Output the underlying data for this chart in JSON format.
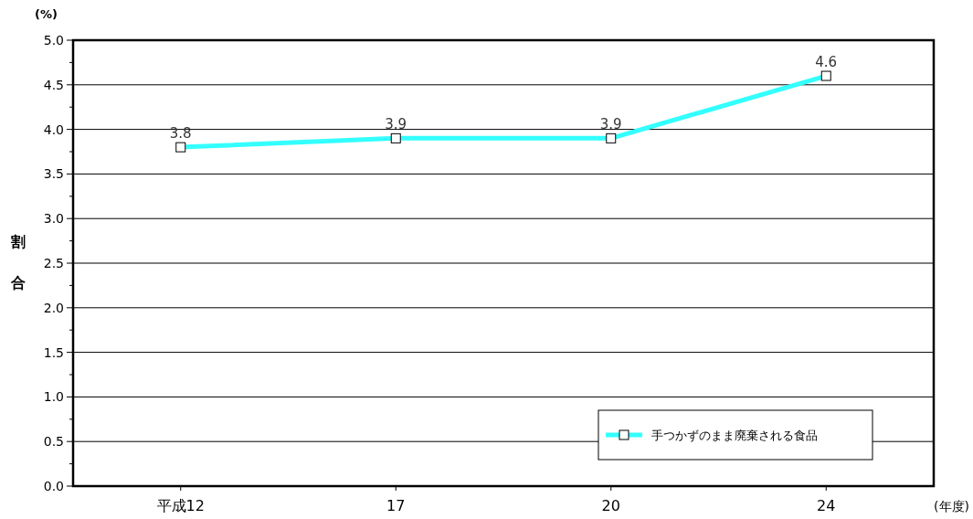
{
  "chart_data": {
    "type": "line",
    "ylabel": "割合",
    "annotations": [
      "(%)",
      "(年度)"
    ],
    "categories": [
      "平成12",
      "17",
      "20",
      "24"
    ],
    "series": [
      {
        "name": "手つかずのまま廃棄される食品",
        "color": "#33ffff",
        "values": [
          3.8,
          3.9,
          3.9,
          4.6
        ]
      }
    ],
    "ylim": [
      0,
      5
    ],
    "yticks": [
      {
        "value": 0,
        "label": "0.0"
      },
      {
        "value": 0.25,
        "label": null
      },
      {
        "value": 0.5,
        "label": "0.5"
      },
      {
        "value": 0.75,
        "label": null
      },
      {
        "value": 1,
        "label": "1.0"
      },
      {
        "value": 1.25,
        "label": null
      },
      {
        "value": 1.5,
        "label": "1.5"
      },
      {
        "value": 1.75,
        "label": null
      },
      {
        "value": 2,
        "label": "2.0"
      },
      {
        "value": 2.25,
        "label": null
      },
      {
        "value": 2.5,
        "label": "2.5"
      },
      {
        "value": 2.75,
        "label": null
      },
      {
        "value": 3,
        "label": "3.0"
      },
      {
        "value": 3.25,
        "label": null
      },
      {
        "value": 3.5,
        "label": "3.5"
      },
      {
        "value": 3.75,
        "label": null
      },
      {
        "value": 4,
        "label": "4.0"
      },
      {
        "value": 4.25,
        "label": null
      },
      {
        "value": 4.5,
        "label": "4.5"
      },
      {
        "value": 4.75,
        "label": null
      },
      {
        "value": 5,
        "label": "5.0"
      }
    ],
    "grid": "y",
    "legend": "bottom right",
    "marker": "square",
    "data_labels": true
  }
}
